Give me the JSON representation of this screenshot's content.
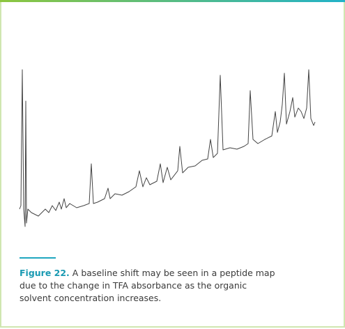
{
  "figure": {
    "label": "Figure 22.",
    "caption_lines": [
      "A baseline shift may be seen in a peptide map",
      "due to the change in TFA absorbance as the organic",
      "solvent concentration increases."
    ]
  }
}
